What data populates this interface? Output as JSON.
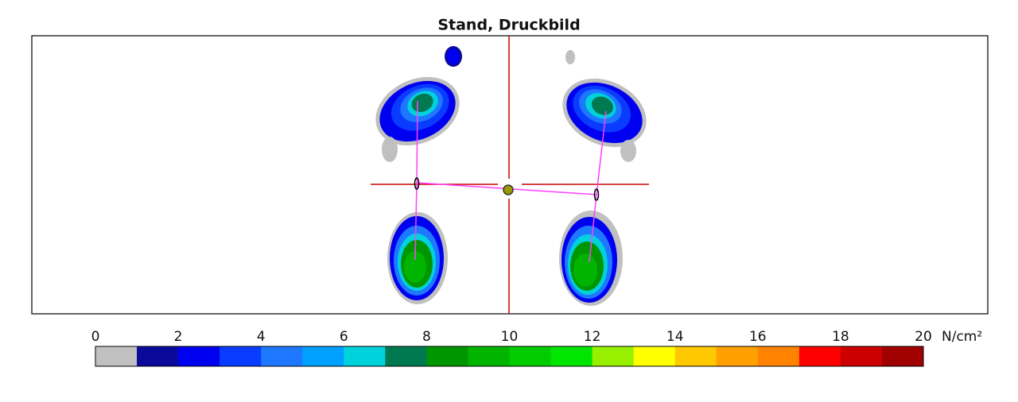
{
  "header": {
    "title": "Stand, Druckbild"
  },
  "colorbar": {
    "ticks": [
      0,
      2,
      4,
      6,
      8,
      10,
      12,
      14,
      16,
      18,
      20
    ],
    "unit": "N/cm²",
    "colors": [
      "#c0c0c0",
      "#0a0a9a",
      "#0000f0",
      "#0a3cff",
      "#1e78ff",
      "#00a0ff",
      "#00d2dc",
      "#007850",
      "#009600",
      "#00b400",
      "#00cc00",
      "#00e600",
      "#96f000",
      "#ffff00",
      "#ffc800",
      "#ffa000",
      "#ff8200",
      "#ff0000",
      "#cc0000",
      "#a00000"
    ]
  }
}
